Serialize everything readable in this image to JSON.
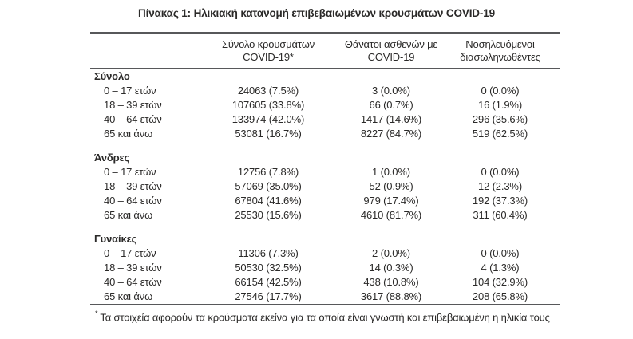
{
  "page": {
    "title": "Πίνακας 1: Ηλικιακή κατανομή επιβεβαιωμένων κρουσμάτων COVID-19"
  },
  "table": {
    "headers": [
      {
        "line1": "Σύνολο κρουσμάτων",
        "line2": "COVID-19*"
      },
      {
        "line1": "Θάνατοι ασθενών με",
        "line2": "COVID-19"
      },
      {
        "line1": "Νοσηλευόμενοι",
        "line2": "διασωληνωθέντες"
      }
    ],
    "sections": [
      {
        "label": "Σύνολο",
        "rows": [
          {
            "age": "0 – 17 ετών",
            "cases": "24063 (7.5%)",
            "deaths": "3 (0.0%)",
            "intubated": "0 (0.0%)"
          },
          {
            "age": "18 – 39 ετών",
            "cases": "107605 (33.8%)",
            "deaths": "66 (0.7%)",
            "intubated": "16 (1.9%)"
          },
          {
            "age": "40 – 64 ετών",
            "cases": "133974 (42.0%)",
            "deaths": "1417 (14.6%)",
            "intubated": "296 (35.6%)"
          },
          {
            "age": "65 και άνω",
            "cases": "53081 (16.7%)",
            "deaths": "8227 (84.7%)",
            "intubated": "519 (62.5%)"
          }
        ]
      },
      {
        "label": "Άνδρες",
        "rows": [
          {
            "age": "0 – 17 ετών",
            "cases": "12756 (7.8%)",
            "deaths": "1 (0.0%)",
            "intubated": "0 (0.0%)"
          },
          {
            "age": "18 – 39 ετών",
            "cases": "57069 (35.0%)",
            "deaths": "52 (0.9%)",
            "intubated": "12 (2.3%)"
          },
          {
            "age": "40 – 64 ετών",
            "cases": "67804 (41.6%)",
            "deaths": "979 (17.4%)",
            "intubated": "192 (37.3%)"
          },
          {
            "age": "65 και άνω",
            "cases": "25530 (15.6%)",
            "deaths": "4610 (81.7%)",
            "intubated": "311 (60.4%)"
          }
        ]
      },
      {
        "label": "Γυναίκες",
        "rows": [
          {
            "age": "0 – 17 ετών",
            "cases": "11306 (7.3%)",
            "deaths": "2 (0.0%)",
            "intubated": "0 (0.0%)"
          },
          {
            "age": "18 – 39 ετών",
            "cases": "50530 (32.5%)",
            "deaths": "14 (0.3%)",
            "intubated": "4 (1.3%)"
          },
          {
            "age": "40 – 64 ετών",
            "cases": "66154 (42.5%)",
            "deaths": "438 (10.8%)",
            "intubated": "104 (32.9%)"
          },
          {
            "age": "65 και άνω",
            "cases": "27546 (17.7%)",
            "deaths": "3617 (88.8%)",
            "intubated": "208 (65.8%)"
          }
        ]
      }
    ],
    "footnote": {
      "marker": "*",
      "text": "Τα στοιχεία αφορούν τα κρούσματα εκείνα για τα οποία είναι γνωστή και επιβεβαιωμένη η ηλικία τους"
    }
  },
  "colors": {
    "text": "#2b2a29",
    "rule": "#57585a",
    "background": "#ffffff"
  }
}
